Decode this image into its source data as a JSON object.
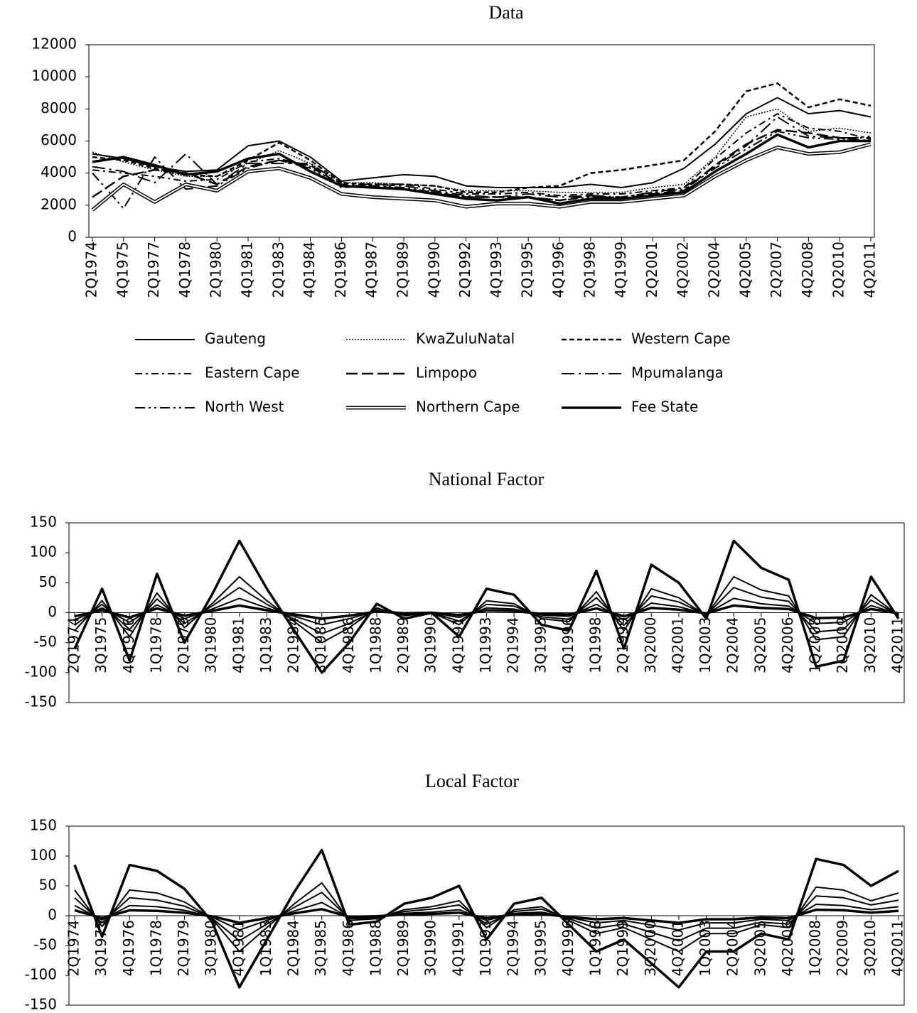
{
  "chart_data": [
    {
      "type": "line",
      "title": "Data",
      "categories": [
        "2Q1974",
        "4Q1975",
        "2Q1977",
        "4Q1978",
        "2Q1980",
        "4Q1981",
        "2Q1983",
        "4Q1984",
        "2Q1986",
        "4Q1987",
        "2Q1989",
        "4Q1990",
        "2Q1992",
        "4Q1993",
        "2Q1995",
        "4Q1996",
        "2Q1998",
        "4Q1999",
        "2Q2001",
        "4Q2002",
        "2Q2004",
        "4Q2005",
        "2Q2007",
        "4Q2008",
        "2Q2010",
        "4Q2011"
      ],
      "ylim": [
        0,
        12000
      ],
      "yticks": [
        0,
        2000,
        4000,
        6000,
        8000,
        10000,
        12000
      ],
      "series": [
        {
          "name": "Gauteng",
          "color": "#000000",
          "style": "solid",
          "values": [
            5200,
            4900,
            4400,
            4100,
            4200,
            5700,
            6000,
            5000,
            3500,
            3700,
            3900,
            3800,
            3200,
            3100,
            3100,
            3100,
            3300,
            3100,
            3400,
            4300,
            5800,
            7700,
            8700,
            7700,
            7900,
            7500
          ]
        },
        {
          "name": "KwaZuluNatal",
          "color": "#000000",
          "style": "dotted",
          "values": [
            5300,
            4700,
            4200,
            3800,
            3800,
            4600,
            5400,
            4600,
            3400,
            3400,
            3300,
            3200,
            2900,
            2900,
            2900,
            2800,
            2800,
            2800,
            3100,
            3300,
            5000,
            7500,
            8000,
            6600,
            6800,
            6500
          ]
        },
        {
          "name": "Western Cape",
          "color": "#000000",
          "style": "dashed",
          "values": [
            5000,
            4800,
            4300,
            3900,
            3800,
            4800,
            5900,
            4800,
            3400,
            3300,
            3300,
            3200,
            2800,
            2800,
            3100,
            3200,
            4000,
            4200,
            4500,
            4800,
            6600,
            9100,
            9600,
            8100,
            8600,
            8200
          ]
        },
        {
          "name": "Eastern Cape",
          "color": "#000000",
          "style": "dash-dot",
          "values": [
            4200,
            4000,
            3800,
            3500,
            3600,
            4700,
            4900,
            4400,
            3200,
            3300,
            3300,
            3000,
            2700,
            2700,
            2800,
            2600,
            2700,
            2700,
            2900,
            3100,
            4900,
            6500,
            7700,
            6800,
            6600,
            6100
          ]
        },
        {
          "name": "Limpopo",
          "color": "#000000",
          "style": "long-dash",
          "values": [
            2500,
            3800,
            4200,
            4000,
            3300,
            4400,
            4800,
            4500,
            3200,
            3200,
            3000,
            2800,
            2500,
            2500,
            2500,
            2300,
            2600,
            2400,
            2700,
            2900,
            4500,
            5800,
            6700,
            6500,
            6200,
            6000
          ]
        },
        {
          "name": "Mpumalanga",
          "color": "#000000",
          "style": "long-dash-dot",
          "values": [
            4400,
            4100,
            3400,
            5200,
            3300,
            4600,
            4600,
            4600,
            3300,
            3300,
            3200,
            2900,
            2600,
            2500,
            2700,
            2500,
            2600,
            2500,
            2800,
            3100,
            4400,
            5700,
            7500,
            6300,
            6200,
            6200
          ]
        },
        {
          "name": "North West",
          "color": "#000000",
          "style": "dash-dot-dot",
          "values": [
            4000,
            1800,
            5000,
            3000,
            3200,
            4300,
            4800,
            4300,
            3100,
            3200,
            3100,
            2800,
            2500,
            2500,
            2500,
            2300,
            2500,
            2500,
            2800,
            3000,
            4300,
            5500,
            6600,
            6200,
            6100,
            6300
          ]
        },
        {
          "name": "Northern Cape",
          "color": "#000000",
          "style": "double",
          "values": [
            1700,
            3300,
            2200,
            3300,
            2900,
            4100,
            4300,
            3700,
            2700,
            2500,
            2400,
            2300,
            1900,
            2100,
            2100,
            1900,
            2200,
            2200,
            2400,
            2600,
            3800,
            4800,
            5600,
            5200,
            5300,
            5800
          ]
        },
        {
          "name": "Fee State",
          "color": "#000000",
          "style": "thick",
          "values": [
            4700,
            5000,
            4500,
            3900,
            4100,
            4900,
            5200,
            4100,
            3200,
            3100,
            3000,
            2700,
            2400,
            2300,
            2500,
            2100,
            2400,
            2400,
            2600,
            2800,
            4100,
            5200,
            6400,
            5600,
            6000,
            6000
          ]
        }
      ]
    },
    {
      "type": "line",
      "title": "National Factor",
      "categories": [
        "2Q1974",
        "3Q1975",
        "4Q1976",
        "1Q1978",
        "2Q1979",
        "3Q1980",
        "4Q1981",
        "1Q1983",
        "2Q1984",
        "3Q1985",
        "4Q1986",
        "1Q1988",
        "2Q1989",
        "3Q1990",
        "4Q1991",
        "1Q1993",
        "2Q1994",
        "3Q1995",
        "4Q1996",
        "1Q1998",
        "2Q1999",
        "3Q2000",
        "4Q2001",
        "1Q2003",
        "2Q2004",
        "3Q2005",
        "4Q2006",
        "1Q2008",
        "2Q2009",
        "3Q2010",
        "4Q2011"
      ],
      "ylim": [
        -150,
        150
      ],
      "yticks": [
        -150,
        -100,
        -50,
        0,
        50,
        100,
        150
      ],
      "series": [
        {
          "color": "#000000",
          "style": "thick",
          "values": [
            -60,
            40,
            -80,
            65,
            -50,
            30,
            120,
            40,
            -30,
            -100,
            -50,
            15,
            -10,
            0,
            -40,
            40,
            30,
            -20,
            -30,
            70,
            -60,
            80,
            50,
            -10,
            120,
            75,
            55,
            -90,
            -80,
            60,
            -10
          ]
        },
        {
          "color": "#000000",
          "style": "solid",
          "values": [
            -30,
            20,
            -40,
            33,
            -25,
            15,
            60,
            20,
            -15,
            -50,
            -25,
            8,
            -5,
            0,
            -20,
            20,
            15,
            -10,
            -15,
            35,
            -30,
            40,
            25,
            -5,
            60,
            38,
            28,
            -45,
            -40,
            30,
            -5
          ]
        },
        {
          "color": "#000000",
          "style": "solid",
          "values": [
            -21,
            14,
            -28,
            23,
            -18,
            11,
            42,
            14,
            -11,
            -35,
            -18,
            5,
            -4,
            0,
            -14,
            14,
            11,
            -7,
            -11,
            25,
            -21,
            28,
            18,
            -4,
            42,
            26,
            19,
            -32,
            -28,
            21,
            -4
          ]
        },
        {
          "color": "#000000",
          "style": "solid",
          "values": [
            -12,
            8,
            -16,
            13,
            -10,
            6,
            24,
            8,
            -6,
            -20,
            -10,
            3,
            -2,
            0,
            -8,
            8,
            6,
            -4,
            -6,
            14,
            -12,
            16,
            10,
            -2,
            24,
            15,
            11,
            -18,
            -16,
            12,
            -2
          ]
        },
        {
          "color": "#000000",
          "style": "thick",
          "values": [
            -6,
            4,
            -8,
            7,
            -5,
            3,
            12,
            4,
            -3,
            -10,
            -5,
            2,
            -1,
            0,
            -4,
            4,
            3,
            -2,
            -3,
            7,
            -6,
            8,
            5,
            -1,
            12,
            8,
            6,
            -9,
            -8,
            6,
            -1
          ]
        }
      ]
    },
    {
      "type": "line",
      "title": "Local Factor",
      "categories": [
        "2Q1974",
        "3Q1975",
        "4Q1976",
        "1Q1978",
        "2Q1979",
        "3Q1980",
        "4Q1981",
        "1Q1983",
        "2Q1984",
        "3Q1985",
        "4Q1986",
        "1Q1988",
        "2Q1989",
        "3Q1990",
        "4Q1991",
        "1Q1993",
        "2Q1994",
        "3Q1995",
        "4Q1996",
        "1Q1998",
        "2Q1999",
        "3Q2000",
        "4Q2001",
        "1Q2003",
        "2Q2004",
        "3Q2005",
        "4Q2006",
        "1Q2008",
        "2Q2009",
        "3Q2010",
        "4Q2011"
      ],
      "ylim": [
        -150,
        150
      ],
      "yticks": [
        -150,
        -100,
        -50,
        0,
        50,
        100,
        150
      ],
      "series": [
        {
          "color": "#000000",
          "style": "thick",
          "values": [
            85,
            -35,
            85,
            75,
            45,
            -10,
            -120,
            -40,
            40,
            110,
            -15,
            -10,
            20,
            30,
            50,
            -40,
            20,
            30,
            -15,
            -60,
            -40,
            -80,
            -120,
            -60,
            -60,
            -30,
            -40,
            95,
            85,
            50,
            75
          ]
        },
        {
          "color": "#000000",
          "style": "solid",
          "values": [
            43,
            -18,
            43,
            38,
            23,
            -5,
            -60,
            -20,
            20,
            55,
            -8,
            -5,
            10,
            15,
            25,
            -20,
            10,
            15,
            -8,
            -30,
            -20,
            -40,
            -60,
            -30,
            -30,
            -15,
            -20,
            48,
            43,
            25,
            38
          ]
        },
        {
          "color": "#000000",
          "style": "solid",
          "values": [
            30,
            -12,
            30,
            26,
            16,
            -4,
            -42,
            -14,
            14,
            39,
            -5,
            -4,
            7,
            11,
            18,
            -14,
            7,
            11,
            -5,
            -21,
            -14,
            -28,
            -42,
            -21,
            -21,
            -11,
            -14,
            33,
            30,
            18,
            26
          ]
        },
        {
          "color": "#000000",
          "style": "solid",
          "values": [
            17,
            -7,
            17,
            15,
            9,
            -2,
            -24,
            -8,
            8,
            22,
            -3,
            -2,
            4,
            6,
            10,
            -8,
            4,
            6,
            -3,
            -12,
            -8,
            -16,
            -24,
            -12,
            -12,
            -6,
            -8,
            19,
            17,
            10,
            15
          ]
        },
        {
          "color": "#000000",
          "style": "thick",
          "values": [
            9,
            -4,
            9,
            8,
            5,
            -1,
            -12,
            -4,
            4,
            11,
            -2,
            -1,
            2,
            3,
            5,
            -4,
            2,
            3,
            -2,
            -6,
            -4,
            -8,
            -12,
            -6,
            -6,
            -3,
            -4,
            10,
            9,
            5,
            8
          ]
        }
      ]
    }
  ]
}
